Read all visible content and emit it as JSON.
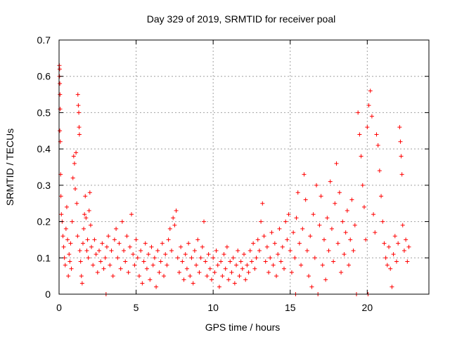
{
  "chart_data": {
    "type": "scatter",
    "title": "Day 329 of 2019, SRMTID for receiver poal",
    "xlabel": "GPS time / hours",
    "ylabel": "SRMTID / TECUs",
    "xlim": [
      0,
      24
    ],
    "ylim": [
      0,
      0.7
    ],
    "xticks": [
      0,
      5,
      10,
      15,
      20
    ],
    "yticks": [
      0,
      0.1,
      0.2,
      0.3,
      0.4,
      0.5,
      0.6,
      0.7
    ],
    "xtick_labels": [
      "0",
      "5",
      "10",
      "15",
      "20"
    ],
    "ytick_labels": [
      "0",
      "0.1",
      "0.2",
      "0.3",
      "0.4",
      "0.5",
      "0.6",
      "0.7"
    ],
    "grid": true,
    "marker": "plus",
    "color": "#ff0000",
    "series": [
      {
        "name": "SRMTID",
        "points": [
          [
            0.02,
            0.63
          ],
          [
            0.03,
            0.6
          ],
          [
            0.04,
            0.62
          ],
          [
            0.05,
            0.58
          ],
          [
            0.06,
            0.55
          ],
          [
            0.07,
            0.51
          ],
          [
            0.05,
            0.45
          ],
          [
            0.08,
            0.42
          ],
          [
            0.1,
            0.33
          ],
          [
            0.12,
            0.27
          ],
          [
            0.15,
            0.22
          ],
          [
            0.2,
            0.2
          ],
          [
            0.25,
            0.16
          ],
          [
            0.3,
            0.13
          ],
          [
            0.35,
            0.1
          ],
          [
            0.4,
            0.08
          ],
          [
            0.45,
            0.18
          ],
          [
            0.5,
            0.24
          ],
          [
            0.55,
            0.15
          ],
          [
            0.6,
            0.05
          ],
          [
            0.65,
            0.11
          ],
          [
            0.7,
            0.09
          ],
          [
            0.75,
            0.14
          ],
          [
            0.8,
            0.07
          ],
          [
            0.85,
            0.2
          ],
          [
            0.9,
            0.32
          ],
          [
            0.95,
            0.38
          ],
          [
            1.0,
            0.36
          ],
          [
            1.05,
            0.29
          ],
          [
            1.1,
            0.39
          ],
          [
            1.15,
            0.25
          ],
          [
            1.2,
            0.16
          ],
          [
            1.22,
            0.55
          ],
          [
            1.25,
            0.52
          ],
          [
            1.28,
            0.5
          ],
          [
            1.3,
            0.46
          ],
          [
            1.32,
            0.44
          ],
          [
            1.35,
            0.12
          ],
          [
            1.4,
            0.09
          ],
          [
            1.45,
            0.05
          ],
          [
            1.5,
            0.03
          ],
          [
            1.55,
            0.14
          ],
          [
            1.6,
            0.18
          ],
          [
            1.65,
            0.22
          ],
          [
            1.7,
            0.27
          ],
          [
            1.75,
            0.21
          ],
          [
            1.8,
            0.12
          ],
          [
            1.85,
            0.15
          ],
          [
            1.9,
            0.1
          ],
          [
            1.95,
            0.23
          ],
          [
            2.0,
            0.28
          ],
          [
            2.05,
            0.19
          ],
          [
            2.1,
            0.13
          ],
          [
            2.2,
            0.08
          ],
          [
            2.3,
            0.15
          ],
          [
            2.4,
            0.11
          ],
          [
            2.5,
            0.06
          ],
          [
            2.6,
            0.12
          ],
          [
            2.7,
            0.09
          ],
          [
            2.8,
            0.14
          ],
          [
            2.9,
            0.07
          ],
          [
            3.0,
            0.1
          ],
          [
            3.05,
            0.0
          ],
          [
            3.1,
            0.13
          ],
          [
            3.2,
            0.16
          ],
          [
            3.3,
            0.08
          ],
          [
            3.4,
            0.12
          ],
          [
            3.5,
            0.05
          ],
          [
            3.6,
            0.15
          ],
          [
            3.7,
            0.18
          ],
          [
            3.8,
            0.1
          ],
          [
            3.9,
            0.14
          ],
          [
            4.0,
            0.07
          ],
          [
            4.1,
            0.2
          ],
          [
            4.2,
            0.12
          ],
          [
            4.3,
            0.09
          ],
          [
            4.4,
            0.16
          ],
          [
            4.5,
            0.06
          ],
          [
            4.6,
            0.13
          ],
          [
            4.7,
            0.22
          ],
          [
            4.8,
            0.11
          ],
          [
            4.9,
            0.08
          ],
          [
            5.0,
            0.15
          ],
          [
            5.1,
            0.1
          ],
          [
            5.2,
            0.05
          ],
          [
            5.3,
            0.12
          ],
          [
            5.4,
            0.03
          ],
          [
            5.5,
            0.09
          ],
          [
            5.6,
            0.14
          ],
          [
            5.7,
            0.07
          ],
          [
            5.8,
            0.11
          ],
          [
            5.9,
            0.04
          ],
          [
            6.0,
            0.13
          ],
          [
            6.1,
            0.08
          ],
          [
            6.2,
            0.1
          ],
          [
            6.3,
            0.02
          ],
          [
            6.4,
            0.12
          ],
          [
            6.5,
            0.06
          ],
          [
            6.6,
            0.09
          ],
          [
            6.7,
            0.14
          ],
          [
            6.8,
            0.05
          ],
          [
            6.9,
            0.11
          ],
          [
            7.0,
            0.08
          ],
          [
            7.1,
            0.15
          ],
          [
            7.2,
            0.18
          ],
          [
            7.3,
            0.12
          ],
          [
            7.4,
            0.21
          ],
          [
            7.5,
            0.19
          ],
          [
            7.6,
            0.23
          ],
          [
            7.7,
            0.1
          ],
          [
            7.8,
            0.06
          ],
          [
            7.9,
            0.13
          ],
          [
            8.0,
            0.09
          ],
          [
            8.1,
            0.04
          ],
          [
            8.2,
            0.11
          ],
          [
            8.3,
            0.07
          ],
          [
            8.4,
            0.14
          ],
          [
            8.5,
            0.05
          ],
          [
            8.6,
            0.1
          ],
          [
            8.7,
            0.03
          ],
          [
            8.8,
            0.12
          ],
          [
            8.9,
            0.08
          ],
          [
            9.0,
            0.15
          ],
          [
            9.1,
            0.06
          ],
          [
            9.2,
            0.1
          ],
          [
            9.3,
            0.13
          ],
          [
            9.4,
            0.2
          ],
          [
            9.5,
            0.09
          ],
          [
            9.6,
            0.05
          ],
          [
            9.7,
            0.11
          ],
          [
            9.8,
            0.07
          ],
          [
            9.9,
            0.04
          ],
          [
            10.0,
            0.1
          ],
          [
            10.1,
            0.06
          ],
          [
            10.2,
            0.12
          ],
          [
            10.3,
            0.08
          ],
          [
            10.4,
            0.02
          ],
          [
            10.5,
            0.09
          ],
          [
            10.6,
            0.05
          ],
          [
            10.7,
            0.11
          ],
          [
            10.8,
            0.07
          ],
          [
            10.9,
            0.13
          ],
          [
            11.0,
            0.04
          ],
          [
            11.1,
            0.09
          ],
          [
            11.2,
            0.06
          ],
          [
            11.3,
            0.1
          ],
          [
            11.4,
            0.03
          ],
          [
            11.5,
            0.08
          ],
          [
            11.6,
            0.12
          ],
          [
            11.7,
            0.05
          ],
          [
            11.8,
            0.09
          ],
          [
            11.9,
            0.07
          ],
          [
            12.0,
            0.11
          ],
          [
            12.1,
            0.04
          ],
          [
            12.2,
            0.08
          ],
          [
            12.3,
            0.06
          ],
          [
            12.4,
            0.12
          ],
          [
            12.5,
            0.09
          ],
          [
            12.6,
            0.14
          ],
          [
            12.7,
            0.07
          ],
          [
            12.8,
            0.1
          ],
          [
            12.9,
            0.15
          ],
          [
            13.0,
            0.12
          ],
          [
            13.1,
            0.2
          ],
          [
            13.2,
            0.25
          ],
          [
            13.3,
            0.16
          ],
          [
            13.4,
            0.09
          ],
          [
            13.5,
            0.13
          ],
          [
            13.6,
            0.06
          ],
          [
            13.7,
            0.1
          ],
          [
            13.8,
            0.17
          ],
          [
            13.9,
            0.08
          ],
          [
            14.0,
            0.14
          ],
          [
            14.1,
            0.05
          ],
          [
            14.2,
            0.11
          ],
          [
            14.3,
            0.18
          ],
          [
            14.4,
            0.09
          ],
          [
            14.5,
            0.13
          ],
          [
            14.6,
            0.07
          ],
          [
            14.7,
            0.2
          ],
          [
            14.8,
            0.15
          ],
          [
            14.9,
            0.22
          ],
          [
            15.0,
            0.12
          ],
          [
            15.1,
            0.06
          ],
          [
            15.2,
            0.17
          ],
          [
            15.3,
            0.1
          ],
          [
            15.35,
            0.0
          ],
          [
            15.4,
            0.21
          ],
          [
            15.5,
            0.28
          ],
          [
            15.6,
            0.14
          ],
          [
            15.7,
            0.08
          ],
          [
            15.8,
            0.18
          ],
          [
            15.9,
            0.33
          ],
          [
            16.0,
            0.26
          ],
          [
            16.1,
            0.12
          ],
          [
            16.2,
            0.05
          ],
          [
            16.3,
            0.16
          ],
          [
            16.4,
            0.02
          ],
          [
            16.5,
            0.22
          ],
          [
            16.6,
            0.1
          ],
          [
            16.7,
            0.3
          ],
          [
            16.8,
            0.0
          ],
          [
            16.9,
            0.19
          ],
          [
            17.0,
            0.27
          ],
          [
            17.1,
            0.08
          ],
          [
            17.2,
            0.15
          ],
          [
            17.3,
            0.04
          ],
          [
            17.4,
            0.21
          ],
          [
            17.5,
            0.12
          ],
          [
            17.6,
            0.31
          ],
          [
            17.7,
            0.18
          ],
          [
            17.8,
            0.09
          ],
          [
            17.9,
            0.25
          ],
          [
            18.0,
            0.36
          ],
          [
            18.1,
            0.14
          ],
          [
            18.2,
            0.28
          ],
          [
            18.3,
            0.06
          ],
          [
            18.4,
            0.2
          ],
          [
            18.5,
            0.11
          ],
          [
            18.6,
            0.17
          ],
          [
            18.7,
            0.23
          ],
          [
            18.8,
            0.08
          ],
          [
            18.9,
            0.15
          ],
          [
            19.0,
            0.26
          ],
          [
            19.1,
            0.12
          ],
          [
            19.2,
            0.19
          ],
          [
            19.3,
            0.0
          ],
          [
            19.4,
            0.5
          ],
          [
            19.5,
            0.44
          ],
          [
            19.6,
            0.38
          ],
          [
            19.7,
            0.3
          ],
          [
            19.8,
            0.24
          ],
          [
            19.9,
            0.15
          ],
          [
            20.0,
            0.46
          ],
          [
            20.05,
            0.0
          ],
          [
            20.1,
            0.52
          ],
          [
            20.2,
            0.56
          ],
          [
            20.3,
            0.49
          ],
          [
            20.4,
            0.22
          ],
          [
            20.5,
            0.17
          ],
          [
            20.6,
            0.44
          ],
          [
            20.7,
            0.41
          ],
          [
            20.8,
            0.34
          ],
          [
            20.9,
            0.27
          ],
          [
            21.0,
            0.2
          ],
          [
            21.1,
            0.14
          ],
          [
            21.2,
            0.1
          ],
          [
            21.3,
            0.08
          ],
          [
            21.4,
            0.13
          ],
          [
            21.5,
            0.07
          ],
          [
            21.6,
            0.02
          ],
          [
            21.7,
            0.11
          ],
          [
            21.8,
            0.16
          ],
          [
            21.9,
            0.09
          ],
          [
            22.0,
            0.14
          ],
          [
            22.1,
            0.46
          ],
          [
            22.15,
            0.42
          ],
          [
            22.2,
            0.38
          ],
          [
            22.25,
            0.33
          ],
          [
            22.3,
            0.19
          ],
          [
            22.4,
            0.12
          ],
          [
            22.5,
            0.15
          ],
          [
            22.6,
            0.09
          ],
          [
            22.7,
            0.13
          ]
        ]
      }
    ]
  }
}
